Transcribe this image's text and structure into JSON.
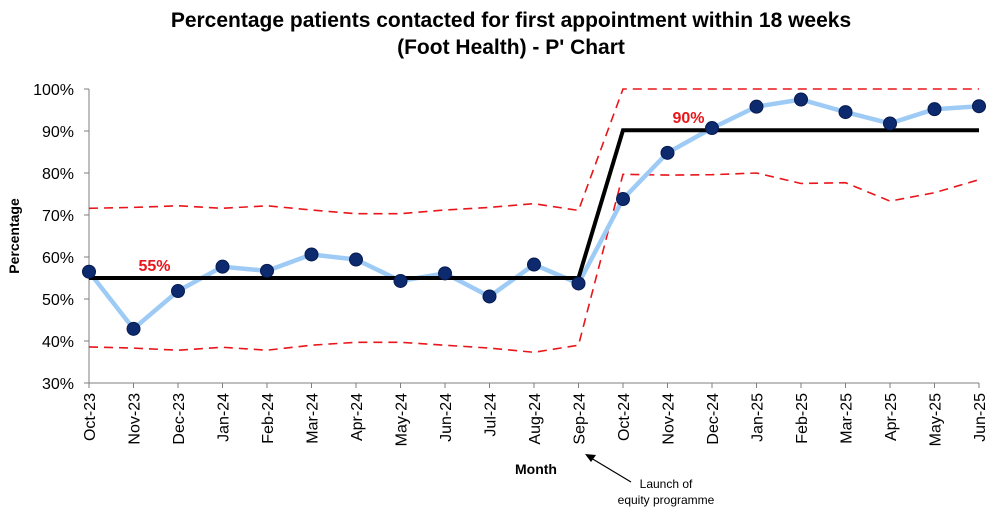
{
  "chart_data": {
    "type": "line",
    "title_line1": "Percentage patients contacted for first appointment within 18 weeks",
    "title_line2": "(Foot Health) - P' Chart",
    "xlabel": "Month",
    "ylabel": "Percentage",
    "ylim": [
      0.3,
      1.0
    ],
    "yticks": [
      {
        "v": 1.0,
        "label": "100%"
      },
      {
        "v": 0.9,
        "label": "90%"
      },
      {
        "v": 0.8,
        "label": "80%"
      },
      {
        "v": 0.7,
        "label": "70%"
      },
      {
        "v": 0.6,
        "label": "60%"
      },
      {
        "v": 0.5,
        "label": "50%"
      },
      {
        "v": 0.4,
        "label": "40%"
      },
      {
        "v": 0.3,
        "label": "30%"
      }
    ],
    "categories": [
      "Oct-23",
      "Nov-23",
      "Dec-23",
      "Jan-24",
      "Feb-24",
      "Mar-24",
      "Apr-24",
      "May-24",
      "Jun-24",
      "Jul-24",
      "Aug-24",
      "Sep-24",
      "Oct-24",
      "Nov-24",
      "Dec-24",
      "Jan-25",
      "Feb-25",
      "Mar-25",
      "Apr-25",
      "May-25",
      "Jun-25"
    ],
    "series": [
      {
        "role": "actual",
        "color": "#9ecbf5",
        "marker_color": "#0d2a6e",
        "values": [
          0.565,
          0.429,
          0.519,
          0.577,
          0.567,
          0.606,
          0.594,
          0.543,
          0.561,
          0.506,
          0.582,
          0.537,
          0.738,
          0.848,
          0.907,
          0.958,
          0.975,
          0.945,
          0.918,
          0.952,
          0.959
        ]
      },
      {
        "role": "mean",
        "color": "#000000",
        "values": [
          0.55,
          0.55,
          0.55,
          0.55,
          0.55,
          0.55,
          0.55,
          0.55,
          0.55,
          0.55,
          0.55,
          0.55,
          0.902,
          0.902,
          0.902,
          0.902,
          0.902,
          0.902,
          0.902,
          0.902,
          0.902
        ]
      },
      {
        "role": "upper_limit",
        "color": "#e8161b",
        "values": [
          0.716,
          0.718,
          0.722,
          0.716,
          0.722,
          0.712,
          0.703,
          0.703,
          0.712,
          0.718,
          0.727,
          0.711,
          1.0,
          1.0,
          1.0,
          1.0,
          1.0,
          1.0,
          1.0,
          1.0,
          1.0
        ]
      },
      {
        "role": "lower_limit",
        "color": "#e8161b",
        "values": [
          0.386,
          0.383,
          0.378,
          0.385,
          0.378,
          0.39,
          0.397,
          0.397,
          0.39,
          0.383,
          0.373,
          0.39,
          0.797,
          0.795,
          0.796,
          0.8,
          0.775,
          0.777,
          0.733,
          0.753,
          0.784
        ]
      }
    ],
    "mean_labels": [
      {
        "text": "55%",
        "x_index": 1,
        "value": 0.55
      },
      {
        "text": "90%",
        "x_index": 13,
        "value": 0.902
      }
    ],
    "annotation": {
      "line1": "Launch of",
      "line2": "equity programme",
      "x_index": 11
    },
    "grid": false,
    "legend": "none"
  }
}
